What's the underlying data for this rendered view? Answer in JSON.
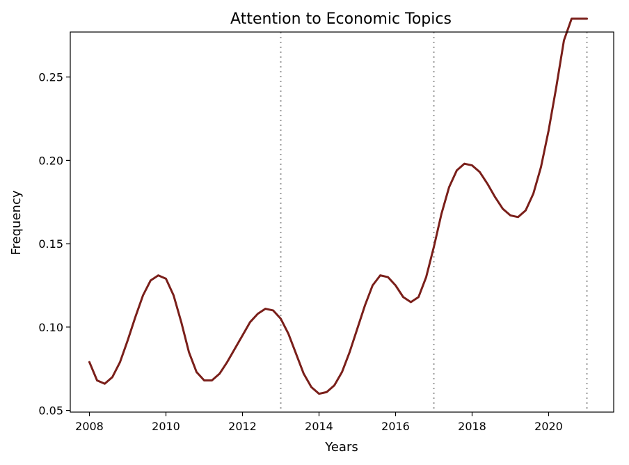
{
  "chart_data": {
    "type": "line",
    "title": "Attention to Economic Topics",
    "xlabel": "Years",
    "ylabel": "Frequency",
    "xlim": [
      2007.5,
      2021.7
    ],
    "ylim": [
      0.049,
      0.277
    ],
    "xticks": [
      2008,
      2010,
      2012,
      2014,
      2016,
      2018,
      2020
    ],
    "xtick_labels": [
      "2008",
      "2010",
      "2012",
      "2014",
      "2016",
      "2018",
      "2020"
    ],
    "yticks": [
      0.05,
      0.1,
      0.15,
      0.2,
      0.25
    ],
    "ytick_labels": [
      "0.05",
      "0.10",
      "0.15",
      "0.20",
      "0.25"
    ],
    "grid": false,
    "vlines": [
      2013,
      2017,
      2021
    ],
    "series": [
      {
        "color": "#7a1f1a",
        "x": [
          2008.0,
          2008.2,
          2008.4,
          2008.6,
          2008.8,
          2009.0,
          2009.2,
          2009.4,
          2009.6,
          2009.8,
          2010.0,
          2010.2,
          2010.4,
          2010.6,
          2010.8,
          2011.0,
          2011.2,
          2011.4,
          2011.6,
          2011.8,
          2012.0,
          2012.2,
          2012.4,
          2012.6,
          2012.8,
          2013.0,
          2013.2,
          2013.4,
          2013.6,
          2013.8,
          2014.0,
          2014.2,
          2014.4,
          2014.6,
          2014.8,
          2015.0,
          2015.2,
          2015.4,
          2015.6,
          2015.8,
          2016.0,
          2016.2,
          2016.4,
          2016.6,
          2016.8,
          2017.0,
          2017.2,
          2017.4,
          2017.6,
          2017.8,
          2018.0,
          2018.2,
          2018.4,
          2018.6,
          2018.8,
          2019.0,
          2019.2,
          2019.4,
          2019.6,
          2019.8,
          2020.0,
          2020.2,
          2020.4,
          2020.6,
          2020.8,
          2021.0
        ],
        "y": [
          0.079,
          0.068,
          0.066,
          0.07,
          0.079,
          0.092,
          0.106,
          0.119,
          0.128,
          0.131,
          0.129,
          0.119,
          0.103,
          0.085,
          0.073,
          0.068,
          0.068,
          0.072,
          0.079,
          0.087,
          0.095,
          0.103,
          0.108,
          0.111,
          0.11,
          0.105,
          0.096,
          0.084,
          0.072,
          0.064,
          0.06,
          0.061,
          0.065,
          0.073,
          0.085,
          0.099,
          0.113,
          0.125,
          0.131,
          0.13,
          0.125,
          0.118,
          0.115,
          0.118,
          0.13,
          0.148,
          0.168,
          0.184,
          0.194,
          0.198,
          0.197,
          0.193,
          0.186,
          0.178,
          0.171,
          0.167,
          0.166,
          0.17,
          0.18,
          0.196,
          0.218,
          0.244,
          0.272,
          0.285,
          0.285,
          0.285
        ]
      }
    ],
    "vline_color": "#999999"
  }
}
